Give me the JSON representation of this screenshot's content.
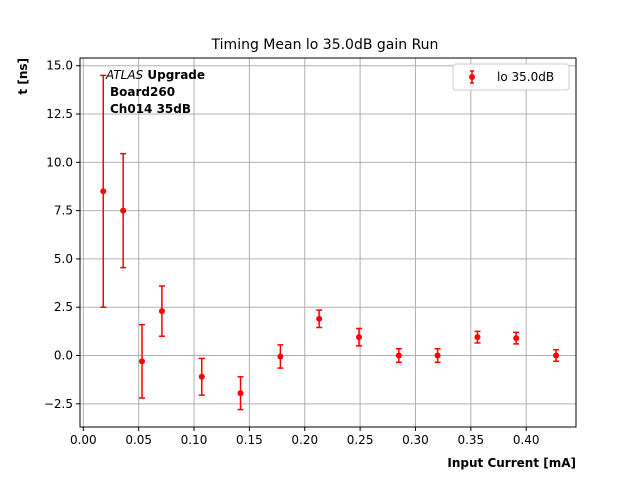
{
  "chart_data": {
    "type": "scatter",
    "title": "Timing Mean lo 35.0dB gain Run",
    "xlabel": "Input Current [mA]",
    "ylabel": "t [ns]",
    "xlim": [
      -0.003,
      0.445
    ],
    "ylim": [
      -3.7,
      15.4
    ],
    "xticks": [
      0.0,
      0.05,
      0.1,
      0.15,
      0.2,
      0.25,
      0.3,
      0.35,
      0.4
    ],
    "xtick_labels": [
      "0.00",
      "0.05",
      "0.10",
      "0.15",
      "0.20",
      "0.25",
      "0.30",
      "0.35",
      "0.40"
    ],
    "yticks": [
      -2.5,
      0.0,
      2.5,
      5.0,
      7.5,
      10.0,
      12.5,
      15.0
    ],
    "ytick_labels": [
      "−2.5",
      "0.0",
      "2.5",
      "5.0",
      "7.5",
      "10.0",
      "12.5",
      "15.0"
    ],
    "grid": true,
    "legend_position": "top-right",
    "series": [
      {
        "name": "lo 35.0dB",
        "color": "#ff0000",
        "x": [
          0.018,
          0.036,
          0.053,
          0.071,
          0.107,
          0.142,
          0.178,
          0.213,
          0.249,
          0.285,
          0.32,
          0.356,
          0.391,
          0.427
        ],
        "y": [
          8.5,
          7.5,
          -0.3,
          2.3,
          -1.1,
          -1.95,
          -0.05,
          1.9,
          0.95,
          0.0,
          0.0,
          0.95,
          0.9,
          0.0
        ],
        "yerr": [
          6.0,
          2.95,
          1.9,
          1.3,
          0.95,
          0.85,
          0.6,
          0.45,
          0.45,
          0.35,
          0.35,
          0.3,
          0.3,
          0.3
        ]
      }
    ],
    "annotation": {
      "line1_italic": "ATLAS",
      "line1_bold": " Upgrade",
      "line2": "Board260",
      "line3": "Ch014 35dB"
    }
  }
}
